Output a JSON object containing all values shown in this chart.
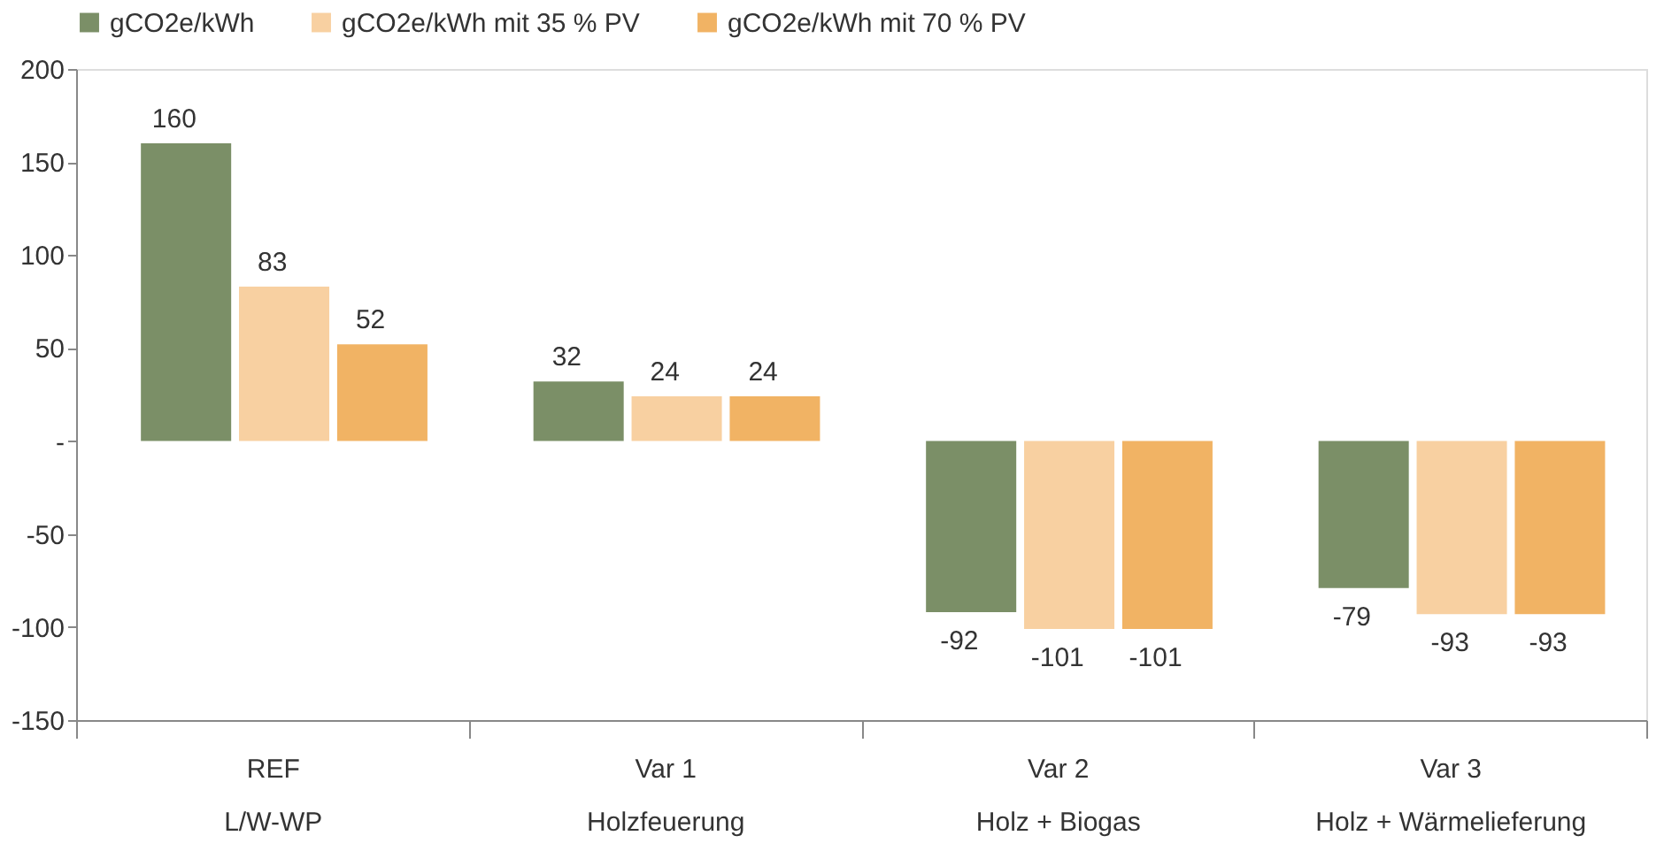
{
  "chart_data": {
    "type": "bar",
    "categories": [
      "REF\nL/W-WP",
      "Var 1\nHolzfeuerung",
      "Var 2\nHolz + Biogas",
      "Var 3\nHolz + Wärmelieferung"
    ],
    "series": [
      {
        "name": "gCO2e/kWh",
        "color": "#7b8f67",
        "values": [
          160,
          32,
          -92,
          -79
        ]
      },
      {
        "name": "gCO2e/kWh mit 35 % PV",
        "color": "#f8d0a1",
        "values": [
          83,
          24,
          -101,
          -93
        ]
      },
      {
        "name": "gCO2e/kWh mit 70 % PV",
        "color": "#f1b364",
        "values": [
          52,
          24,
          -101,
          -93
        ]
      }
    ],
    "ylim": [
      -150,
      200
    ],
    "yticks": [
      -150,
      -100,
      -50,
      {
        "value": 0,
        "label": "-"
      },
      50,
      100,
      150,
      200
    ],
    "data_labels": true,
    "legend": "top",
    "grid": false
  }
}
